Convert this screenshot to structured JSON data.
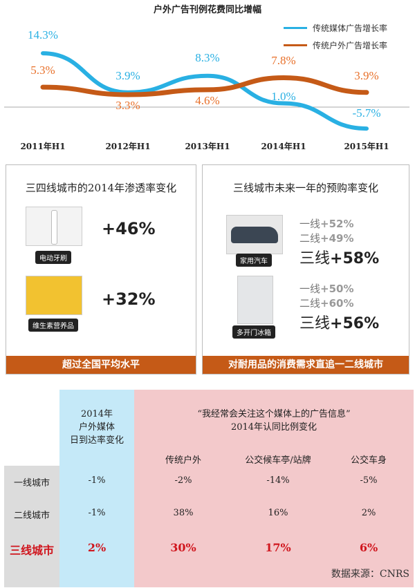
{
  "chart_data": {
    "type": "line",
    "title": "户外广告刊例花费同比增幅",
    "categories": [
      "2011年H1",
      "2012年H1",
      "2013年H1",
      "2014年H1",
      "2015年H1"
    ],
    "series": [
      {
        "name": "传统媒体广告增长率",
        "color": "#29b0e3",
        "values": [
          14.3,
          3.9,
          8.3,
          1.0,
          -5.7
        ],
        "labels": [
          "14.3%",
          "3.9%",
          "8.3%",
          "1.0%",
          "-5.7%"
        ]
      },
      {
        "name": "传统户外广告增长率",
        "color": "#c55a17",
        "values": [
          5.3,
          3.3,
          4.6,
          7.8,
          3.9
        ],
        "labels": [
          "5.3%",
          "3.3%",
          "4.6%",
          "7.8%",
          "3.9%"
        ]
      }
    ],
    "legend": "top-right"
  },
  "left_panel": {
    "title": "三四线城市的2014年渗透率变化",
    "items": [
      {
        "tag": "电动牙刷",
        "value": "+46%"
      },
      {
        "tag": "维生素营养品",
        "value": "+32%"
      }
    ],
    "banner": "超过全国平均水平"
  },
  "right_panel": {
    "title": "三线城市未来一年的预购率变化",
    "items": [
      {
        "tag": "家用汽车",
        "l1": "一线",
        "v1": "+52%",
        "l2": "二线",
        "v2": "+49%",
        "l3": "三线",
        "v3": "+58%"
      },
      {
        "tag": "多开门冰箱",
        "l1": "一线",
        "v1": "+50%",
        "l2": "二线",
        "v2": "+60%",
        "l3": "三线",
        "v3": "+56%"
      }
    ],
    "banner": "对耐用品的消费需求直追一二线城市"
  },
  "table": {
    "col1_header": [
      "2014年",
      "户外媒体",
      "日到达率变化"
    ],
    "group_header": [
      "“我经常会关注这个媒体上的广告信息”",
      "2014年认同比例变化"
    ],
    "sub_headers": [
      "传统户外",
      "公交候车亭/站牌",
      "公交车身"
    ],
    "rows": [
      {
        "city": "一线城市",
        "values": [
          "-1%",
          "-2%",
          "-14%",
          "-5%"
        ]
      },
      {
        "city": "二线城市",
        "values": [
          "-1%",
          "38%",
          "16%",
          "2%"
        ]
      },
      {
        "city": "三线城市",
        "values": [
          "2%",
          "30%",
          "17%",
          "6%"
        ]
      }
    ]
  },
  "source": "数据来源：CNRS"
}
